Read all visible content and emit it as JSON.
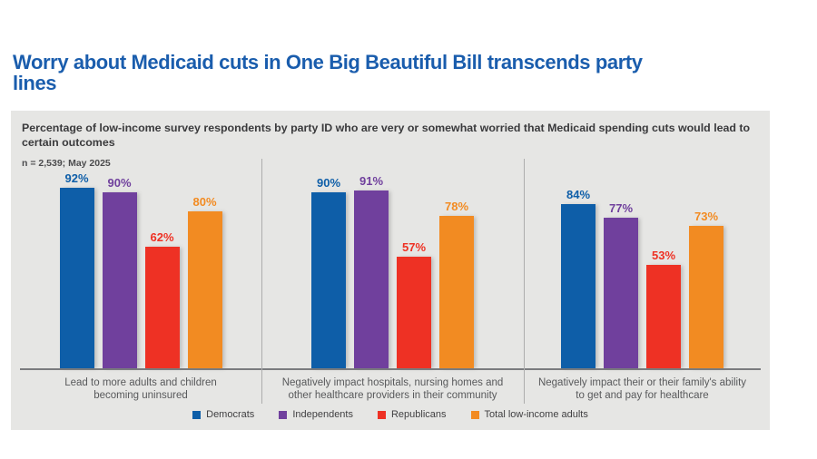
{
  "title": "Worry about Medicaid cuts in One Big Beautiful Bill transcends party\nlines",
  "subtitle": "Percentage of low-income survey respondents by party ID who are very or somewhat worried that Medicaid spending cuts would lead to certain outcomes",
  "sample_note": "n = 2,539; May 2025",
  "colors": {
    "title_blue": "#1A5DAD",
    "panel_background": "#E6E6E4",
    "axis_line": "#7A7B7E",
    "group_divider": "#ADADAD",
    "category_text": "#58595B"
  },
  "chart_data": {
    "type": "bar",
    "title": "Worry about Medicaid cuts in One Big Beautiful Bill transcends party lines",
    "subtitle": "Percentage of low-income survey respondents by party ID who are very or somewhat worried that Medicaid spending cuts would lead to certain outcomes",
    "sample_note": "n = 2,539; May 2025",
    "categories": [
      "Lead to more adults and children\nbecoming uninsured",
      "Negatively impact hospitals, nursing homes and\nother healthcare providers in their community",
      "Negatively impact their or their family's ability\nto get and pay for healthcare"
    ],
    "series": [
      {
        "name": "Democrats",
        "color": "#0E5EA8",
        "values": [
          92,
          90,
          84
        ]
      },
      {
        "name": "Independents",
        "color": "#70409D",
        "values": [
          90,
          91,
          77
        ]
      },
      {
        "name": "Republicans",
        "color": "#EE3124",
        "values": [
          62,
          57,
          53
        ]
      },
      {
        "name": "Total low-income adults",
        "color": "#F28B22",
        "values": [
          80,
          78,
          73
        ]
      }
    ],
    "value_suffix": "%",
    "data_labels": true,
    "ylim": [
      0,
      100
    ],
    "xlabel": "",
    "ylabel": "",
    "grid": false,
    "legend_position": "bottom"
  }
}
